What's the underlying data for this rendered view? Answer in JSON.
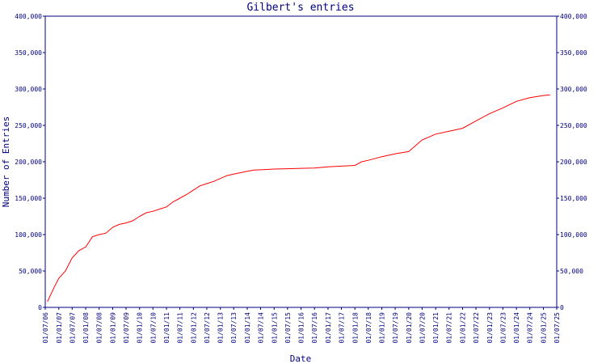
{
  "chart_data": {
    "type": "line",
    "title": "Gilbert's entries",
    "xlabel": "Date",
    "ylabel": "Number of Entries",
    "ylim": [
      0,
      400000
    ],
    "y_ticks": [
      {
        "value": 0,
        "label": "0"
      },
      {
        "value": 50000,
        "label": "50,000"
      },
      {
        "value": 100000,
        "label": "100,000"
      },
      {
        "value": 150000,
        "label": "150,000"
      },
      {
        "value": 200000,
        "label": "200,000"
      },
      {
        "value": 250000,
        "label": "250,000"
      },
      {
        "value": 300000,
        "label": "300,000"
      },
      {
        "value": 350000,
        "label": "350,000"
      },
      {
        "value": 400000,
        "label": "400,000"
      }
    ],
    "x_ticks": [
      "01/07/06",
      "01/01/07",
      "01/07/07",
      "01/01/08",
      "01/07/08",
      "01/01/09",
      "01/07/09",
      "01/01/10",
      "01/07/10",
      "01/01/11",
      "01/07/11",
      "01/01/12",
      "01/07/12",
      "01/01/13",
      "01/07/13",
      "01/01/14",
      "01/07/14",
      "01/01/15",
      "01/07/15",
      "01/01/16",
      "01/07/16",
      "01/01/17",
      "01/07/17",
      "01/01/18",
      "01/07/18",
      "01/01/19",
      "01/07/19",
      "01/01/20",
      "01/07/20",
      "01/01/21",
      "01/07/21",
      "01/01/22",
      "01/07/22",
      "01/01/23",
      "01/07/23",
      "01/01/24",
      "01/07/24",
      "01/01/25",
      "01/07/25"
    ],
    "line_color": "#ff0000",
    "axis_color": "#000080",
    "grid": false,
    "series": [
      {
        "points": [
          [
            "01/08/06",
            8000
          ],
          [
            "01/11/06",
            28000
          ],
          [
            "01/01/07",
            40000
          ],
          [
            "01/04/07",
            50000
          ],
          [
            "01/07/07",
            68000
          ],
          [
            "01/10/07",
            78000
          ],
          [
            "01/01/08",
            83000
          ],
          [
            "01/04/08",
            97000
          ],
          [
            "01/07/08",
            100000
          ],
          [
            "01/10/08",
            102000
          ],
          [
            "01/01/09",
            110000
          ],
          [
            "01/04/09",
            114000
          ],
          [
            "01/07/09",
            116000
          ],
          [
            "01/10/09",
            119000
          ],
          [
            "01/01/10",
            125000
          ],
          [
            "01/04/10",
            130000
          ],
          [
            "01/07/10",
            132000
          ],
          [
            "01/10/10",
            135000
          ],
          [
            "01/01/11",
            138000
          ],
          [
            "01/04/11",
            145000
          ],
          [
            "01/07/11",
            150000
          ],
          [
            "01/10/11",
            155000
          ],
          [
            "01/01/12",
            161000
          ],
          [
            "01/04/12",
            167000
          ],
          [
            "01/07/12",
            170000
          ],
          [
            "01/10/12",
            173000
          ],
          [
            "01/01/13",
            177000
          ],
          [
            "01/04/13",
            181000
          ],
          [
            "01/07/13",
            183000
          ],
          [
            "01/10/13",
            185000
          ],
          [
            "01/01/14",
            187000
          ],
          [
            "01/04/14",
            188500
          ],
          [
            "01/07/14",
            189000
          ],
          [
            "01/01/15",
            190000
          ],
          [
            "01/07/15",
            190500
          ],
          [
            "01/01/16",
            191000
          ],
          [
            "01/07/16",
            191500
          ],
          [
            "01/01/17",
            193000
          ],
          [
            "01/07/17",
            194000
          ],
          [
            "01/01/18",
            195000
          ],
          [
            "01/04/18",
            200000
          ],
          [
            "01/07/18",
            202000
          ],
          [
            "01/01/19",
            207000
          ],
          [
            "01/07/19",
            211000
          ],
          [
            "01/01/20",
            214000
          ],
          [
            "01/04/20",
            222000
          ],
          [
            "01/07/20",
            230000
          ],
          [
            "01/01/21",
            238000
          ],
          [
            "01/07/21",
            242000
          ],
          [
            "01/01/22",
            246000
          ],
          [
            "01/07/22",
            256000
          ],
          [
            "01/01/23",
            266000
          ],
          [
            "01/07/23",
            274000
          ],
          [
            "01/01/24",
            283000
          ],
          [
            "01/07/24",
            288000
          ],
          [
            "01/01/25",
            291000
          ],
          [
            "01/04/25",
            292000
          ]
        ]
      }
    ]
  }
}
